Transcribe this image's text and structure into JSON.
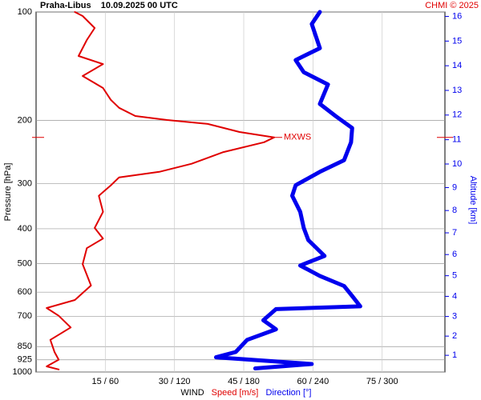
{
  "chart_data": {
    "type": "line",
    "title": "Praha-Libus    10.09.2025 00 UTC",
    "credit": "CHMI © 2025",
    "ylabel": "Pressure [hPa]",
    "y2label": "Altitude [km]",
    "xlabel": "WIND",
    "log_y": true,
    "ylim": [
      1000,
      100
    ],
    "yticks": [
      100,
      200,
      300,
      400,
      500,
      600,
      700,
      850,
      925,
      1000
    ],
    "y2scale": "standard-atmosphere",
    "y2ticks": [
      1,
      2,
      3,
      4,
      5,
      6,
      7,
      8,
      9,
      10,
      11,
      12,
      13,
      14,
      15,
      16
    ],
    "xlim": [
      0,
      88.6
    ],
    "x2lim": [
      0,
      354.4
    ],
    "xticks": [
      {
        "value": 15,
        "label": "15 / 60"
      },
      {
        "value": 30,
        "label": "30 / 120"
      },
      {
        "value": 45,
        "label": "45 / 180"
      },
      {
        "value": 60,
        "label": "60 / 240"
      },
      {
        "value": 75,
        "label": "75 / 300"
      }
    ],
    "grid": true,
    "annotation": {
      "text": "MXWS",
      "pressure": 223
    },
    "series": [
      {
        "name": "Speed [m/s]",
        "color": "#e00000",
        "axis": "x",
        "width": 2,
        "pressure": [
          100,
          102.6,
          110.8,
          119.6,
          132.5,
          139.5,
          150.6,
          162.6,
          175.5,
          184.6,
          194.5,
          199.5,
          204.6,
          215.4,
          223,
          230,
          245,
          264,
          278,
          288,
          303,
          324,
          359,
          398,
          426,
          453,
          502,
          575,
          631,
          664,
          698,
          752,
          814,
          880,
          924,
          965,
          984
        ],
        "values": [
          8.4,
          10.1,
          12.7,
          11,
          9.2,
          14.5,
          10.1,
          14.5,
          16.2,
          18,
          21.5,
          28.4,
          37.2,
          44.1,
          51.6,
          49.4,
          40.6,
          33.7,
          26.7,
          18,
          16.2,
          13.6,
          14.5,
          12.7,
          14.5,
          11,
          10.1,
          11.9,
          8.4,
          2.3,
          4.9,
          7.5,
          3.1,
          4,
          4.9,
          2.3,
          4.9
        ]
      },
      {
        "name": "Direction [°]",
        "color": "#0000ee",
        "axis": "x2",
        "width": 5,
        "pressure": [
          100,
          108,
          126,
          136,
          147,
          159,
          180,
          195,
          210,
          230,
          258,
          278,
          303,
          324,
          359,
          398,
          430,
          476,
          506,
          541,
          577,
          615,
          657,
          669,
          718,
          761,
          814,
          880,
          910,
          950,
          977
        ],
        "values": [
          246,
          239,
          246,
          225,
          232,
          253,
          246,
          260,
          274,
          273,
          267,
          246,
          225,
          222,
          229,
          232,
          236,
          250,
          229,
          246,
          267,
          274,
          281,
          208,
          197,
          208,
          183,
          173,
          156,
          239,
          190
        ]
      }
    ]
  }
}
